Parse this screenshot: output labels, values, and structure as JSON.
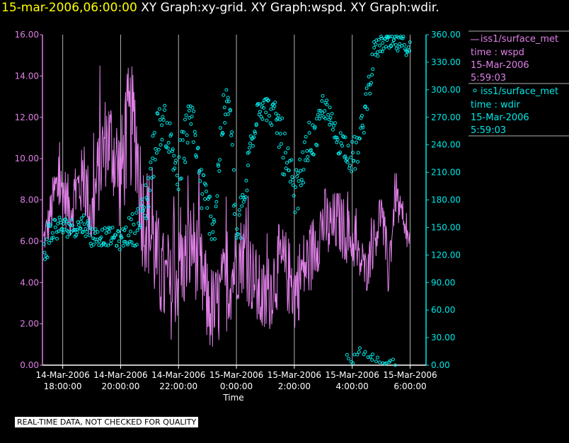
{
  "header": {
    "timestamp": "15-mar-2006,06:00:00",
    "graphs": "XY Graph:xy-grid.  XY Graph:wspd.  XY Graph:wdir."
  },
  "footer": {
    "disclaimer": "REAL-TIME DATA, NOT CHECKED FOR QUALITY"
  },
  "colors": {
    "wspd": "#e080e8",
    "wdir": "#00e8e8",
    "grid": "#b0b0b0"
  },
  "chart_data": {
    "type": "line",
    "xlabel": "Time",
    "x_range_hours": [
      17.3,
      30.55
    ],
    "x_ticks": [
      {
        "hour": 18,
        "line1": "14-Mar-2006",
        "line2": "18:00:00"
      },
      {
        "hour": 20,
        "line1": "14-Mar-2006",
        "line2": "20:00:00"
      },
      {
        "hour": 22,
        "line1": "14-Mar-2006",
        "line2": "22:00:00"
      },
      {
        "hour": 24,
        "line1": "15-Mar-2006",
        "line2": "0:00:00"
      },
      {
        "hour": 26,
        "line1": "15-Mar-2006",
        "line2": "2:00:00"
      },
      {
        "hour": 28,
        "line1": "15-Mar-2006",
        "line2": "4:00:00"
      },
      {
        "hour": 30,
        "line1": "15-Mar-2006",
        "line2": "6:00:00"
      }
    ],
    "y_left": {
      "range": [
        0,
        16
      ],
      "ticks": [
        "0.00",
        "2.00",
        "4.00",
        "6.00",
        "8.00",
        "10.00",
        "12.00",
        "14.00",
        "16.00"
      ]
    },
    "y_right": {
      "range": [
        0,
        360
      ],
      "ticks": [
        "0.00",
        "30.00",
        "60.00",
        "90.00",
        "120.00",
        "150.00",
        "180.00",
        "210.00",
        "240.00",
        "270.00",
        "300.00",
        "330.00",
        "360.00"
      ]
    },
    "legend": [
      {
        "line1": "iss1/surface_met",
        "line2": "time : wspd",
        "line3": "15-Mar-2006",
        "line4": "5:59:03"
      },
      {
        "line1": "iss1/surface_met",
        "line2": "time : wdir",
        "line3": "15-Mar-2006",
        "line4": "5:59:03"
      }
    ],
    "series": [
      {
        "name": "wspd",
        "axis": "left",
        "style": "line",
        "x": [
          17.33,
          17.5,
          17.75,
          18.0,
          18.25,
          18.5,
          18.75,
          19.0,
          19.25,
          19.5,
          19.75,
          20.0,
          20.25,
          20.5,
          20.75,
          21.0,
          21.25,
          21.5,
          21.75,
          22.0,
          22.25,
          22.5,
          22.75,
          23.0,
          23.25,
          23.5,
          23.75,
          24.0,
          24.25,
          24.5,
          24.75,
          25.0,
          25.25,
          25.5,
          25.75,
          26.0,
          26.25,
          26.5,
          26.75,
          27.0,
          27.25,
          27.5,
          27.75,
          28.0,
          28.25,
          28.5,
          28.75,
          29.0,
          29.25,
          29.5,
          29.75,
          30.0
        ],
        "y": [
          6.0,
          6.8,
          8.5,
          8.5,
          7.5,
          8.5,
          9.0,
          7.0,
          9.5,
          11.0,
          10.5,
          9.0,
          11.5,
          11.5,
          7.5,
          6.8,
          5.0,
          4.0,
          3.5,
          4.5,
          5.0,
          6.0,
          4.5,
          3.0,
          2.5,
          3.5,
          4.0,
          5.0,
          5.5,
          4.5,
          3.5,
          3.0,
          4.0,
          5.0,
          4.5,
          3.5,
          4.5,
          5.0,
          6.0,
          7.0,
          6.5,
          7.0,
          6.5,
          6.0,
          5.0,
          4.5,
          6.0,
          7.5,
          4.5,
          8.5,
          6.5,
          6.0
        ],
        "amp": [
          0.8,
          1.0,
          1.5,
          1.5,
          1.5,
          1.6,
          1.8,
          2.0,
          2.2,
          2.4,
          2.6,
          2.8,
          3.0,
          3.0,
          2.8,
          2.8,
          2.6,
          2.5,
          2.3,
          2.3,
          2.3,
          2.3,
          2.3,
          2.3,
          2.2,
          2.2,
          2.2,
          2.0,
          2.0,
          2.0,
          2.0,
          2.0,
          2.0,
          2.0,
          2.0,
          2.0,
          2.0,
          1.8,
          1.8,
          1.8,
          1.8,
          1.6,
          1.6,
          1.2,
          1.0,
          1.0,
          1.2,
          1.2,
          1.4,
          1.2,
          0.8,
          0.6
        ]
      },
      {
        "name": "wdir",
        "axis": "right",
        "style": "points",
        "x": [
          17.33,
          17.5,
          17.75,
          18.0,
          18.25,
          18.5,
          18.75,
          19.0,
          19.25,
          19.5,
          19.75,
          20.0,
          20.25,
          20.5,
          20.75,
          21.0,
          21.25,
          21.5,
          21.75,
          22.0,
          22.25,
          22.5,
          22.75,
          23.0,
          23.25,
          23.5,
          23.75,
          24.0,
          24.25,
          24.5,
          24.75,
          25.0,
          25.25,
          25.5,
          25.75,
          26.0,
          26.25,
          26.5,
          26.75,
          27.0,
          27.25,
          27.5,
          27.75,
          28.0,
          28.25,
          28.5,
          28.75,
          29.0,
          29.25,
          29.5,
          29.75,
          30.0
        ],
        "y": [
          120,
          140,
          150,
          150,
          150,
          150,
          155,
          140,
          140,
          140,
          140,
          135,
          145,
          150,
          160,
          200,
          255,
          265,
          240,
          205,
          250,
          270,
          200,
          170,
          155,
          265,
          290,
          140,
          170,
          245,
          285,
          280,
          275,
          255,
          210,
          180,
          210,
          245,
          245,
          285,
          265,
          245,
          240,
          225,
          240,
          290,
          340,
          350,
          350,
          350,
          350,
          345
        ],
        "spread": [
          20,
          20,
          15,
          12,
          10,
          10,
          12,
          12,
          10,
          10,
          10,
          10,
          15,
          20,
          25,
          30,
          25,
          20,
          25,
          35,
          30,
          25,
          30,
          25,
          25,
          25,
          20,
          30,
          25,
          25,
          15,
          15,
          15,
          25,
          35,
          30,
          20,
          20,
          20,
          15,
          15,
          15,
          15,
          20,
          20,
          20,
          12,
          10,
          10,
          10,
          10,
          10
        ]
      },
      {
        "name": "wdir-wrapped",
        "axis": "right",
        "style": "points",
        "x": [
          27.75,
          27.85,
          28.0,
          28.1,
          28.2,
          29.35,
          29.42,
          29.5
        ],
        "y": [
          12,
          5,
          3,
          8,
          15,
          2,
          6,
          3
        ],
        "spread": [
          6,
          6,
          6,
          6,
          6,
          4,
          4,
          4
        ]
      }
    ]
  }
}
